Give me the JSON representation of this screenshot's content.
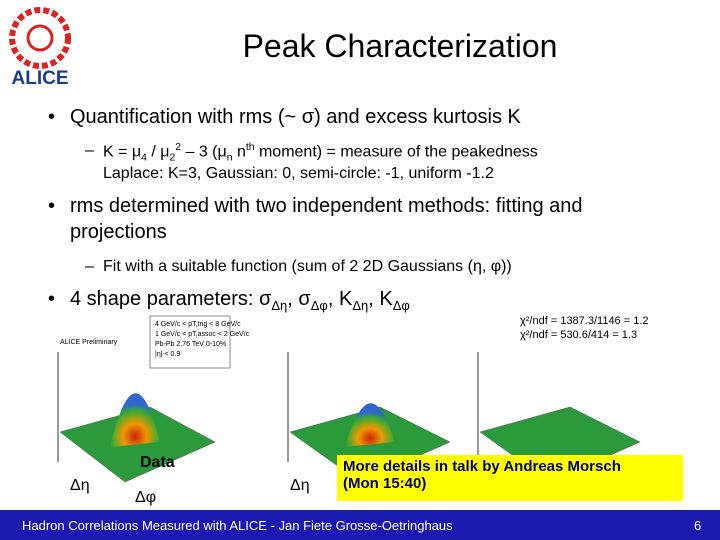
{
  "header": {
    "title": "Peak Characterization",
    "logo": "ALICE"
  },
  "bullets": [
    {
      "text": "Quantification with rms (~ σ) and excess kurtosis K",
      "sub": [
        [
          "K = μ",
          "4",
          " / μ",
          "2",
          "2",
          " – 3 (μ",
          "n",
          " n",
          "th",
          " moment) = measure of the peakedness"
        ],
        [
          "Laplace: K=3, Gaussian: 0, semi-circle: -1, uniform -1.2"
        ]
      ]
    },
    {
      "text": "rms determined with two independent methods: fitting and projections",
      "sub": [
        [
          "Fit with a suitable function (sum of 2 2D Gaussians (η, φ))"
        ]
      ]
    },
    {
      "text": [
        "4 shape parameters: σ",
        "Δη",
        ", σ",
        "Δφ",
        ", K",
        "Δη",
        ", K",
        "Δφ"
      ]
    }
  ],
  "plots": {
    "inset": [
      "4 GeV/c < pT,trig < 8 GeV/c",
      "1 GeV/c < pT,assoc < 2 GeV/c",
      "Pb-Pb 2.76 TeV 0-10%",
      "|η| < 0.9"
    ],
    "preliminary": "ALICE Preliminary",
    "labels": [
      "Data",
      "Δη",
      "Δφ",
      "Δη"
    ],
    "chi2": [
      "χ²/ndf = 1387.3/1146 = 1.2",
      "χ²/ndf = 530.6/414 = 1.3"
    ]
  },
  "callout": [
    "More details in talk by Andreas Morsch",
    "(Mon 15:40)"
  ],
  "footer": {
    "text": "Hadron Correlations Measured with ALICE - Jan Fiete Grosse-Oetringhaus",
    "page": "6"
  }
}
